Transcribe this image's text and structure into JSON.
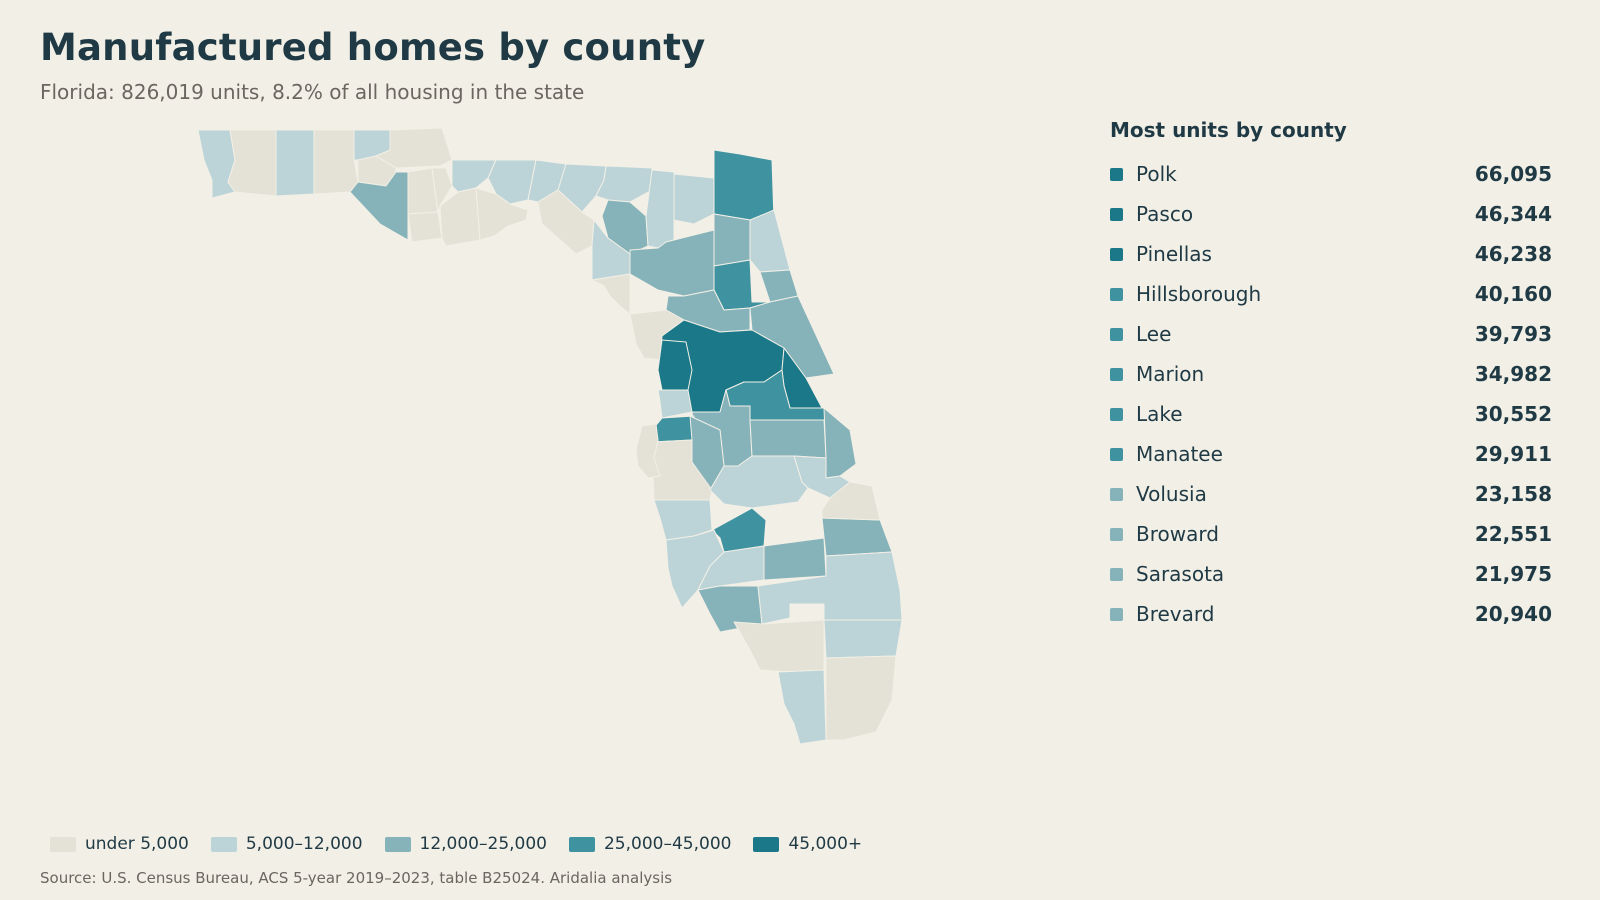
{
  "header": {
    "title": "Manufactured homes by county",
    "subtitle": "Florida: 826,019 units, 8.2% of all housing in the state"
  },
  "ranking": {
    "title": "Most units by county",
    "items": [
      {
        "name": "Polk",
        "value": "66,095",
        "color": "#1a7888"
      },
      {
        "name": "Pasco",
        "value": "46,344",
        "color": "#1a7888"
      },
      {
        "name": "Pinellas",
        "value": "46,238",
        "color": "#1a7888"
      },
      {
        "name": "Hillsborough",
        "value": "40,160",
        "color": "#3f93a0"
      },
      {
        "name": "Lee",
        "value": "39,793",
        "color": "#3f93a0"
      },
      {
        "name": "Marion",
        "value": "34,982",
        "color": "#3f93a0"
      },
      {
        "name": "Lake",
        "value": "30,552",
        "color": "#3f93a0"
      },
      {
        "name": "Manatee",
        "value": "29,911",
        "color": "#3f93a0"
      },
      {
        "name": "Volusia",
        "value": "23,158",
        "color": "#85b3b9"
      },
      {
        "name": "Broward",
        "value": "22,551",
        "color": "#85b3b9"
      },
      {
        "name": "Sarasota",
        "value": "21,975",
        "color": "#85b3b9"
      },
      {
        "name": "Brevard",
        "value": "20,940",
        "color": "#85b3b9"
      }
    ]
  },
  "legend": {
    "items": [
      {
        "label": "under 5,000",
        "color": "#e4e1d6"
      },
      {
        "label": "5,000–12,000",
        "color": "#bcd4d8"
      },
      {
        "label": "12,000–25,000",
        "color": "#85b3b9"
      },
      {
        "label": "25,000–45,000",
        "color": "#3f93a0"
      },
      {
        "label": "45,000+",
        "color": "#1a7888"
      }
    ]
  },
  "source": "Source: U.S. Census Bureau, ACS 5-year 2019–2023, table B25024. Aridalia analysis",
  "map": {
    "region": "Florida",
    "county_classes": [
      "5,000–12,000",
      "under 5,000",
      "5,000–12,000",
      "under 5,000",
      "5,000–12,000",
      "under 5,000",
      "12,000–25,000",
      "under 5,000",
      "under 5,000",
      "under 5,000",
      "5,000–12,000",
      "5,000–12,000",
      "under 5,000",
      "under 5,000",
      "under 5,000",
      "5,000–12,000",
      "5,000–12,000",
      "under 5,000",
      "5,000–12,000",
      "12,000–25,000",
      "5,000–12,000",
      "5,000–12,000",
      "5,000–12,000",
      "under 5,000",
      "12,000–25,000",
      "25,000–45,000",
      "12,000–25,000",
      "5,000–12,000",
      "12,000–25,000",
      "25,000–45,000",
      "12,000–25,000",
      "under 5,000",
      "12,000–25,000",
      "45,000+",
      "45,000+",
      "45,000+",
      "25,000–45,000",
      "5,000–12,000",
      "12,000–25,000",
      "25,000–45,000",
      "12,000–25,000",
      "under 5,000",
      "5,000–12,000",
      "5,000–12,000",
      "12,000–25,000",
      "25,000–45,000",
      "12,000–25,000",
      "5,000–12,000",
      "under 5,000",
      "5,000–12,000",
      "5,000–12,000",
      "12,000–25,000",
      "12,000–25,000",
      "12,000–25,000",
      "under 5,000"
    ]
  }
}
